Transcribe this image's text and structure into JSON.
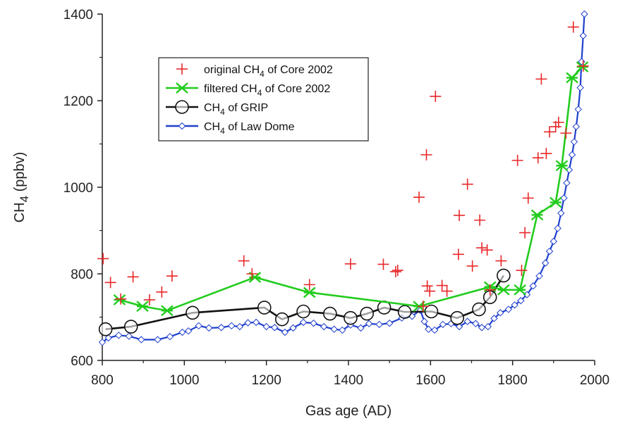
{
  "chart_data": {
    "type": "scatter",
    "xlabel": "Gas age  (AD)",
    "ylabel_main": "CH",
    "ylabel_sub": "4",
    "ylabel_unit": "(ppbv)",
    "xlim": [
      800,
      2000
    ],
    "ylim": [
      600,
      1400
    ],
    "xticks": [
      "800",
      "1000",
      "1200",
      "1400",
      "1600",
      "1800",
      "2000"
    ],
    "yticks": [
      "600",
      "800",
      "1000",
      "1200",
      "1400"
    ],
    "grid": false,
    "legend_position": "top-left",
    "series": [
      {
        "name_pre": "original CH",
        "name_sub": "4",
        "name_post": " of Core 2002",
        "color": "#e8282a",
        "marker": "plus",
        "line": false,
        "points": [
          [
            802,
            835
          ],
          [
            820,
            780
          ],
          [
            845,
            742
          ],
          [
            875,
            793
          ],
          [
            915,
            740
          ],
          [
            945,
            758
          ],
          [
            970,
            795
          ],
          [
            1145,
            830
          ],
          [
            1165,
            800
          ],
          [
            1305,
            775
          ],
          [
            1405,
            823
          ],
          [
            1485,
            822
          ],
          [
            1515,
            805
          ],
          [
            1520,
            808
          ],
          [
            1572,
            977
          ],
          [
            1582,
            725
          ],
          [
            1590,
            1075
          ],
          [
            1592,
            772
          ],
          [
            1598,
            760
          ],
          [
            1612,
            1210
          ],
          [
            1628,
            773
          ],
          [
            1640,
            760
          ],
          [
            1668,
            845
          ],
          [
            1670,
            935
          ],
          [
            1690,
            1007
          ],
          [
            1702,
            818
          ],
          [
            1720,
            924
          ],
          [
            1725,
            860
          ],
          [
            1738,
            855
          ],
          [
            1745,
            763
          ],
          [
            1772,
            830
          ],
          [
            1812,
            1062
          ],
          [
            1822,
            808
          ],
          [
            1830,
            895
          ],
          [
            1838,
            975
          ],
          [
            1862,
            1068
          ],
          [
            1870,
            1250
          ],
          [
            1882,
            1078
          ],
          [
            1890,
            1128
          ],
          [
            1905,
            1140
          ],
          [
            1912,
            1150
          ],
          [
            1930,
            1125
          ],
          [
            1948,
            1370
          ],
          [
            1972,
            1280
          ]
        ]
      },
      {
        "name_pre": "filtered CH",
        "name_sub": "4",
        "name_post": " of Core 2002",
        "color": "#22cc1e",
        "marker": "x",
        "line": true,
        "points": [
          [
            842,
            740
          ],
          [
            898,
            725
          ],
          [
            958,
            715
          ],
          [
            1172,
            792
          ],
          [
            1305,
            757
          ],
          [
            1572,
            725
          ],
          [
            1745,
            770
          ],
          [
            1778,
            763
          ],
          [
            1818,
            763
          ],
          [
            1860,
            936
          ],
          [
            1905,
            965
          ],
          [
            1920,
            1050
          ],
          [
            1945,
            1253
          ],
          [
            1970,
            1278
          ]
        ]
      },
      {
        "name_pre": "CH",
        "name_sub": "4",
        "name_post": " of GRIP",
        "color": "#111111",
        "marker": "circle",
        "line": true,
        "points": [
          [
            808,
            672
          ],
          [
            870,
            678
          ],
          [
            1020,
            710
          ],
          [
            1195,
            722
          ],
          [
            1238,
            695
          ],
          [
            1290,
            713
          ],
          [
            1355,
            708
          ],
          [
            1405,
            698
          ],
          [
            1445,
            708
          ],
          [
            1487,
            722
          ],
          [
            1537,
            712
          ],
          [
            1602,
            713
          ],
          [
            1665,
            698
          ],
          [
            1718,
            718
          ],
          [
            1745,
            746
          ],
          [
            1778,
            796
          ]
        ]
      },
      {
        "name_pre": "CH",
        "name_sub": "4",
        "name_post": " of Law Dome",
        "color": "#1f3fcc",
        "marker": "diamond",
        "line": true,
        "points": [
          [
            800,
            642
          ],
          [
            815,
            652
          ],
          [
            840,
            658
          ],
          [
            865,
            656
          ],
          [
            895,
            648
          ],
          [
            935,
            648
          ],
          [
            965,
            655
          ],
          [
            995,
            665
          ],
          [
            1010,
            668
          ],
          [
            1035,
            680
          ],
          [
            1060,
            675
          ],
          [
            1090,
            676
          ],
          [
            1115,
            680
          ],
          [
            1135,
            678
          ],
          [
            1155,
            687
          ],
          [
            1175,
            688
          ],
          [
            1200,
            678
          ],
          [
            1220,
            676
          ],
          [
            1245,
            665
          ],
          [
            1265,
            675
          ],
          [
            1290,
            688
          ],
          [
            1315,
            686
          ],
          [
            1340,
            678
          ],
          [
            1365,
            672
          ],
          [
            1385,
            670
          ],
          [
            1405,
            682
          ],
          [
            1430,
            675
          ],
          [
            1450,
            685
          ],
          [
            1475,
            683
          ],
          [
            1500,
            686
          ],
          [
            1530,
            698
          ],
          [
            1555,
            702
          ],
          [
            1575,
            716
          ],
          [
            1585,
            690
          ],
          [
            1595,
            672
          ],
          [
            1610,
            670
          ],
          [
            1630,
            683
          ],
          [
            1650,
            685
          ],
          [
            1670,
            678
          ],
          [
            1690,
            690
          ],
          [
            1710,
            685
          ],
          [
            1725,
            676
          ],
          [
            1740,
            678
          ],
          [
            1755,
            697
          ],
          [
            1770,
            710
          ],
          [
            1790,
            718
          ],
          [
            1805,
            728
          ],
          [
            1820,
            738
          ],
          [
            1835,
            752
          ],
          [
            1850,
            772
          ],
          [
            1865,
            795
          ],
          [
            1880,
            825
          ],
          [
            1890,
            852
          ],
          [
            1900,
            875
          ],
          [
            1910,
            905
          ],
          [
            1918,
            940
          ],
          [
            1925,
            975
          ],
          [
            1932,
            1010
          ],
          [
            1938,
            1040
          ],
          [
            1945,
            1075
          ],
          [
            1950,
            1105
          ],
          [
            1955,
            1140
          ],
          [
            1960,
            1180
          ],
          [
            1965,
            1230
          ],
          [
            1968,
            1290
          ],
          [
            1972,
            1350
          ],
          [
            1975,
            1400
          ]
        ]
      }
    ]
  }
}
